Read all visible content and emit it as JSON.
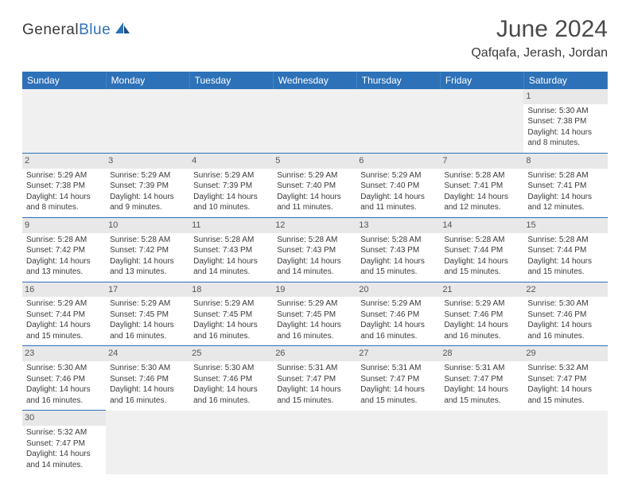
{
  "logo": {
    "text1": "General",
    "text2": "Blue"
  },
  "title": "June 2024",
  "location": "Qafqafa, Jerash, Jordan",
  "colors": {
    "header_bg": "#2d71b8",
    "header_text": "#ffffff",
    "daynum_bg": "#e8e8e8",
    "cell_border": "#2d71b8",
    "body_text": "#3a3a3a",
    "logo_blue": "#2d71b8"
  },
  "day_headers": [
    "Sunday",
    "Monday",
    "Tuesday",
    "Wednesday",
    "Thursday",
    "Friday",
    "Saturday"
  ],
  "weeks": [
    [
      null,
      null,
      null,
      null,
      null,
      null,
      {
        "n": "1",
        "sr": "Sunrise: 5:30 AM",
        "ss": "Sunset: 7:38 PM",
        "d1": "Daylight: 14 hours",
        "d2": "and 8 minutes."
      }
    ],
    [
      {
        "n": "2",
        "sr": "Sunrise: 5:29 AM",
        "ss": "Sunset: 7:38 PM",
        "d1": "Daylight: 14 hours",
        "d2": "and 8 minutes."
      },
      {
        "n": "3",
        "sr": "Sunrise: 5:29 AM",
        "ss": "Sunset: 7:39 PM",
        "d1": "Daylight: 14 hours",
        "d2": "and 9 minutes."
      },
      {
        "n": "4",
        "sr": "Sunrise: 5:29 AM",
        "ss": "Sunset: 7:39 PM",
        "d1": "Daylight: 14 hours",
        "d2": "and 10 minutes."
      },
      {
        "n": "5",
        "sr": "Sunrise: 5:29 AM",
        "ss": "Sunset: 7:40 PM",
        "d1": "Daylight: 14 hours",
        "d2": "and 11 minutes."
      },
      {
        "n": "6",
        "sr": "Sunrise: 5:29 AM",
        "ss": "Sunset: 7:40 PM",
        "d1": "Daylight: 14 hours",
        "d2": "and 11 minutes."
      },
      {
        "n": "7",
        "sr": "Sunrise: 5:28 AM",
        "ss": "Sunset: 7:41 PM",
        "d1": "Daylight: 14 hours",
        "d2": "and 12 minutes."
      },
      {
        "n": "8",
        "sr": "Sunrise: 5:28 AM",
        "ss": "Sunset: 7:41 PM",
        "d1": "Daylight: 14 hours",
        "d2": "and 12 minutes."
      }
    ],
    [
      {
        "n": "9",
        "sr": "Sunrise: 5:28 AM",
        "ss": "Sunset: 7:42 PM",
        "d1": "Daylight: 14 hours",
        "d2": "and 13 minutes."
      },
      {
        "n": "10",
        "sr": "Sunrise: 5:28 AM",
        "ss": "Sunset: 7:42 PM",
        "d1": "Daylight: 14 hours",
        "d2": "and 13 minutes."
      },
      {
        "n": "11",
        "sr": "Sunrise: 5:28 AM",
        "ss": "Sunset: 7:43 PM",
        "d1": "Daylight: 14 hours",
        "d2": "and 14 minutes."
      },
      {
        "n": "12",
        "sr": "Sunrise: 5:28 AM",
        "ss": "Sunset: 7:43 PM",
        "d1": "Daylight: 14 hours",
        "d2": "and 14 minutes."
      },
      {
        "n": "13",
        "sr": "Sunrise: 5:28 AM",
        "ss": "Sunset: 7:43 PM",
        "d1": "Daylight: 14 hours",
        "d2": "and 15 minutes."
      },
      {
        "n": "14",
        "sr": "Sunrise: 5:28 AM",
        "ss": "Sunset: 7:44 PM",
        "d1": "Daylight: 14 hours",
        "d2": "and 15 minutes."
      },
      {
        "n": "15",
        "sr": "Sunrise: 5:28 AM",
        "ss": "Sunset: 7:44 PM",
        "d1": "Daylight: 14 hours",
        "d2": "and 15 minutes."
      }
    ],
    [
      {
        "n": "16",
        "sr": "Sunrise: 5:29 AM",
        "ss": "Sunset: 7:44 PM",
        "d1": "Daylight: 14 hours",
        "d2": "and 15 minutes."
      },
      {
        "n": "17",
        "sr": "Sunrise: 5:29 AM",
        "ss": "Sunset: 7:45 PM",
        "d1": "Daylight: 14 hours",
        "d2": "and 16 minutes."
      },
      {
        "n": "18",
        "sr": "Sunrise: 5:29 AM",
        "ss": "Sunset: 7:45 PM",
        "d1": "Daylight: 14 hours",
        "d2": "and 16 minutes."
      },
      {
        "n": "19",
        "sr": "Sunrise: 5:29 AM",
        "ss": "Sunset: 7:45 PM",
        "d1": "Daylight: 14 hours",
        "d2": "and 16 minutes."
      },
      {
        "n": "20",
        "sr": "Sunrise: 5:29 AM",
        "ss": "Sunset: 7:46 PM",
        "d1": "Daylight: 14 hours",
        "d2": "and 16 minutes."
      },
      {
        "n": "21",
        "sr": "Sunrise: 5:29 AM",
        "ss": "Sunset: 7:46 PM",
        "d1": "Daylight: 14 hours",
        "d2": "and 16 minutes."
      },
      {
        "n": "22",
        "sr": "Sunrise: 5:30 AM",
        "ss": "Sunset: 7:46 PM",
        "d1": "Daylight: 14 hours",
        "d2": "and 16 minutes."
      }
    ],
    [
      {
        "n": "23",
        "sr": "Sunrise: 5:30 AM",
        "ss": "Sunset: 7:46 PM",
        "d1": "Daylight: 14 hours",
        "d2": "and 16 minutes."
      },
      {
        "n": "24",
        "sr": "Sunrise: 5:30 AM",
        "ss": "Sunset: 7:46 PM",
        "d1": "Daylight: 14 hours",
        "d2": "and 16 minutes."
      },
      {
        "n": "25",
        "sr": "Sunrise: 5:30 AM",
        "ss": "Sunset: 7:46 PM",
        "d1": "Daylight: 14 hours",
        "d2": "and 16 minutes."
      },
      {
        "n": "26",
        "sr": "Sunrise: 5:31 AM",
        "ss": "Sunset: 7:47 PM",
        "d1": "Daylight: 14 hours",
        "d2": "and 15 minutes."
      },
      {
        "n": "27",
        "sr": "Sunrise: 5:31 AM",
        "ss": "Sunset: 7:47 PM",
        "d1": "Daylight: 14 hours",
        "d2": "and 15 minutes."
      },
      {
        "n": "28",
        "sr": "Sunrise: 5:31 AM",
        "ss": "Sunset: 7:47 PM",
        "d1": "Daylight: 14 hours",
        "d2": "and 15 minutes."
      },
      {
        "n": "29",
        "sr": "Sunrise: 5:32 AM",
        "ss": "Sunset: 7:47 PM",
        "d1": "Daylight: 14 hours",
        "d2": "and 15 minutes."
      }
    ],
    [
      {
        "n": "30",
        "sr": "Sunrise: 5:32 AM",
        "ss": "Sunset: 7:47 PM",
        "d1": "Daylight: 14 hours",
        "d2": "and 14 minutes."
      },
      null,
      null,
      null,
      null,
      null,
      null
    ]
  ]
}
